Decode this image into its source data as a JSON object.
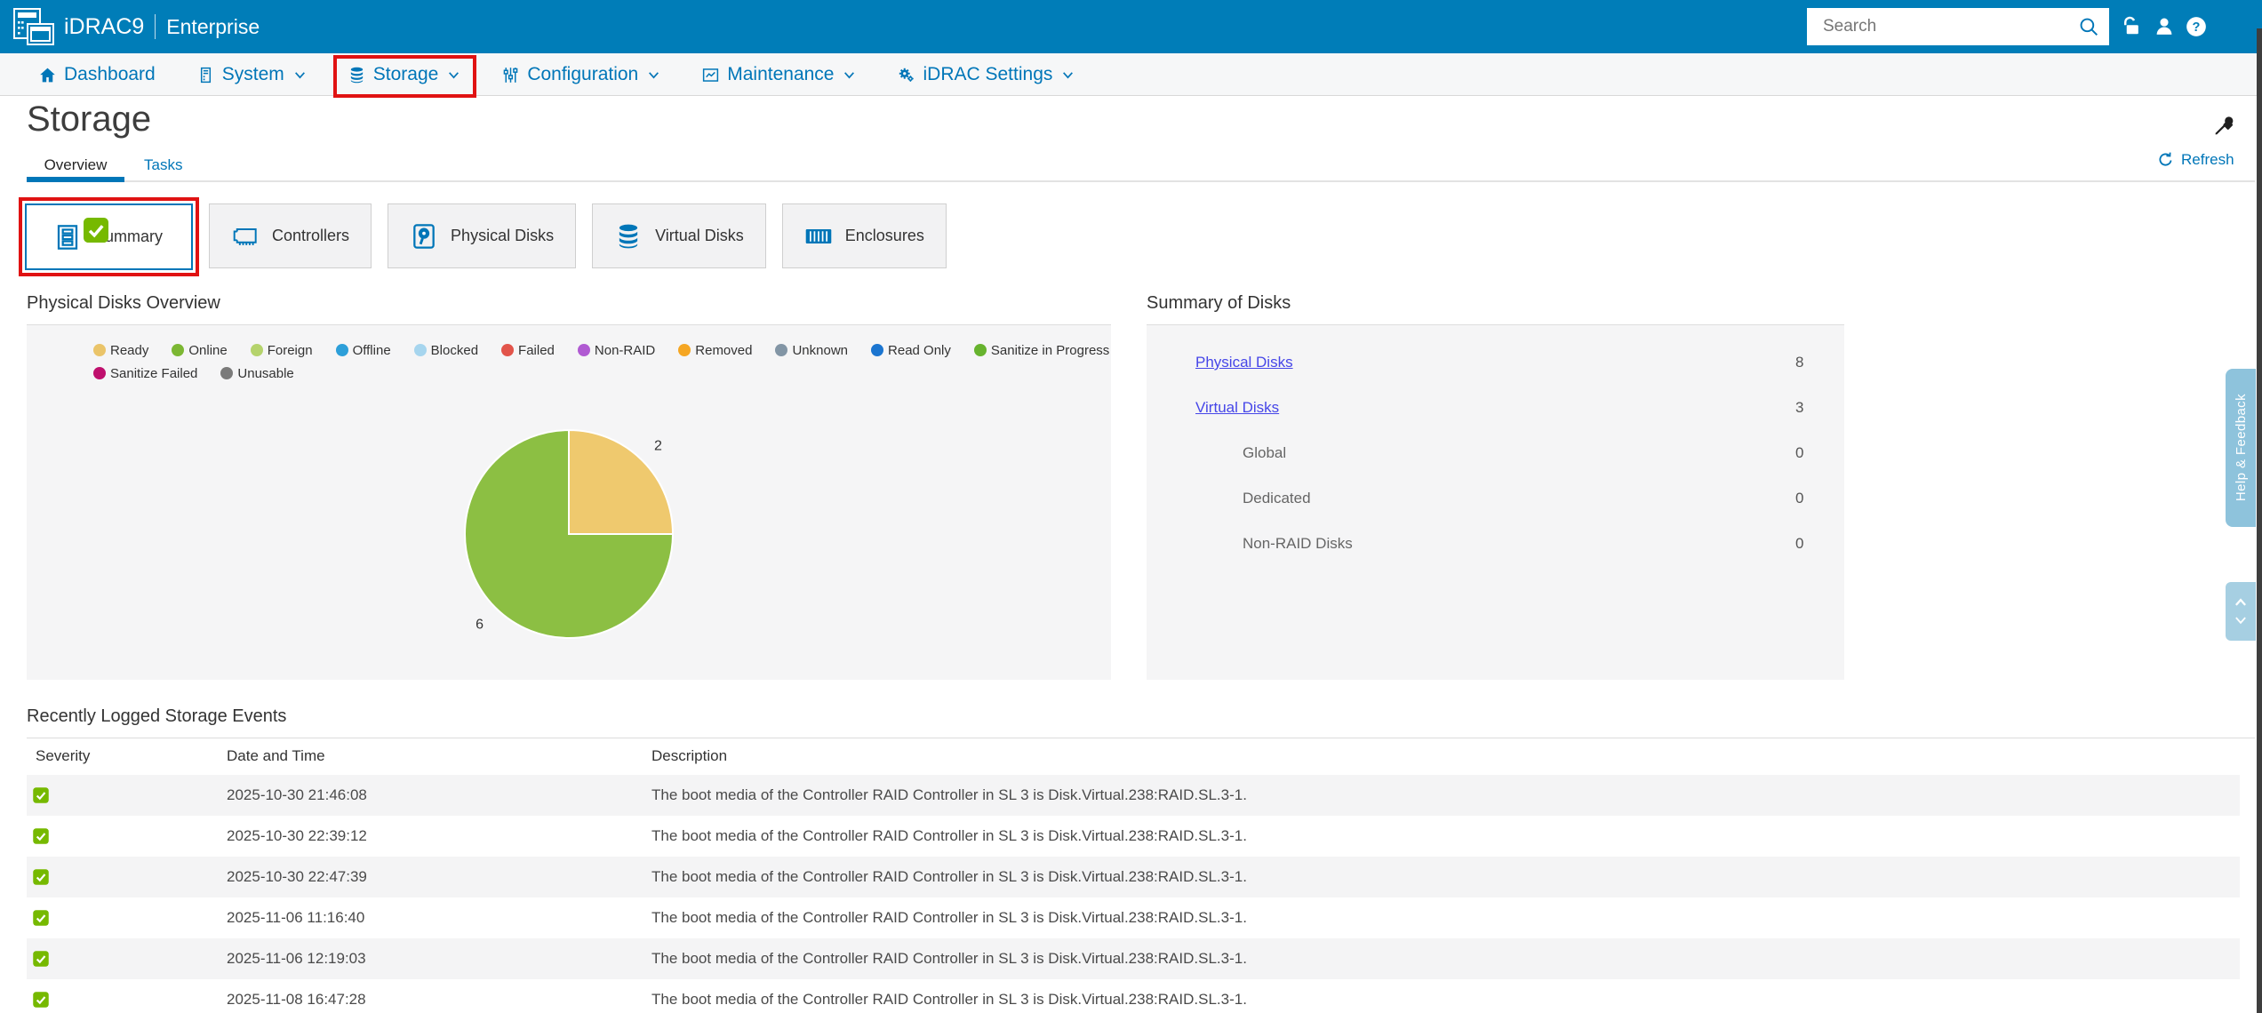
{
  "header": {
    "product": "iDRAC9",
    "edition": "Enterprise",
    "search_placeholder": "Search",
    "icons": [
      "lock-open-icon",
      "user-icon",
      "help-icon"
    ]
  },
  "nav": {
    "items": [
      {
        "label": "Dashboard",
        "icon": "home",
        "dropdown": false,
        "highlighted": false
      },
      {
        "label": "System",
        "icon": "server",
        "dropdown": true,
        "highlighted": false
      },
      {
        "label": "Storage",
        "icon": "db",
        "dropdown": true,
        "highlighted": true
      },
      {
        "label": "Configuration",
        "icon": "sliders",
        "dropdown": true,
        "highlighted": false
      },
      {
        "label": "Maintenance",
        "icon": "chart-square",
        "dropdown": true,
        "highlighted": false
      },
      {
        "label": "iDRAC Settings",
        "icon": "gears",
        "dropdown": true,
        "highlighted": false
      }
    ],
    "pin_icon": "pin"
  },
  "page": {
    "title": "Storage",
    "tabs": [
      {
        "label": "Overview",
        "active": true
      },
      {
        "label": "Tasks",
        "active": false
      }
    ],
    "refresh_label": "Refresh"
  },
  "cards": [
    {
      "label": "Summary",
      "icon": "card-summary",
      "selected": true,
      "badge": "ok"
    },
    {
      "label": "Controllers",
      "icon": "card-controllers",
      "selected": false
    },
    {
      "label": "Physical Disks",
      "icon": "card-pdisk",
      "selected": false
    },
    {
      "label": "Virtual Disks",
      "icon": "card-vdisk",
      "selected": false
    },
    {
      "label": "Enclosures",
      "icon": "card-enclosure",
      "selected": false
    }
  ],
  "chart_section": {
    "title": "Physical Disks Overview"
  },
  "chart_data": {
    "type": "pie",
    "title": "Physical Disks Overview",
    "slices": [
      {
        "label": "Ready",
        "value": 2,
        "color": "#efc96e"
      },
      {
        "label": "Online",
        "value": 6,
        "color": "#8cbf43"
      }
    ],
    "total": 8,
    "start_angle_deg": 0,
    "direction": "clockwise",
    "data_labels_shown": true,
    "legend_position": "top",
    "legend_rows": [
      11,
      2
    ],
    "legend": [
      {
        "label": "Ready",
        "color": "#eac469"
      },
      {
        "label": "Online",
        "color": "#7cb733"
      },
      {
        "label": "Foreign",
        "color": "#b5d36c"
      },
      {
        "label": "Offline",
        "color": "#2d9fd9"
      },
      {
        "label": "Blocked",
        "color": "#a6d5ee"
      },
      {
        "label": "Failed",
        "color": "#e2544a"
      },
      {
        "label": "Non-RAID",
        "color": "#b05ad2"
      },
      {
        "label": "Removed",
        "color": "#f5a623"
      },
      {
        "label": "Unknown",
        "color": "#8295a5"
      },
      {
        "label": "Read Only",
        "color": "#1b75d0"
      },
      {
        "label": "Sanitize in Progress",
        "color": "#67b32e"
      },
      {
        "label": "Sanitize Failed",
        "color": "#bf0f6d"
      },
      {
        "label": "Unusable",
        "color": "#7a7a7a"
      }
    ]
  },
  "summary": {
    "title": "Summary of Disks",
    "rows": [
      {
        "label": "Physical Disks",
        "value": "8",
        "link": true,
        "indent": false
      },
      {
        "label": "Virtual Disks",
        "value": "3",
        "link": true,
        "indent": false
      },
      {
        "label": "Global",
        "value": "0",
        "link": false,
        "indent": true
      },
      {
        "label": "Dedicated",
        "value": "0",
        "link": false,
        "indent": true
      },
      {
        "label": "Non-RAID Disks",
        "value": "0",
        "link": false,
        "indent": true
      }
    ]
  },
  "events": {
    "title": "Recently Logged Storage Events",
    "columns": [
      "Severity",
      "Date and Time",
      "Description"
    ],
    "rows": [
      {
        "severity": "ok",
        "datetime": "2025-10-30 21:46:08",
        "description": "The boot media of the Controller RAID Controller in SL 3 is Disk.Virtual.238:RAID.SL.3-1."
      },
      {
        "severity": "ok",
        "datetime": "2025-10-30 22:39:12",
        "description": "The boot media of the Controller RAID Controller in SL 3 is Disk.Virtual.238:RAID.SL.3-1."
      },
      {
        "severity": "ok",
        "datetime": "2025-10-30 22:47:39",
        "description": "The boot media of the Controller RAID Controller in SL 3 is Disk.Virtual.238:RAID.SL.3-1."
      },
      {
        "severity": "ok",
        "datetime": "2025-11-06 11:16:40",
        "description": "The boot media of the Controller RAID Controller in SL 3 is Disk.Virtual.238:RAID.SL.3-1."
      },
      {
        "severity": "ok",
        "datetime": "2025-11-06 12:19:03",
        "description": "The boot media of the Controller RAID Controller in SL 3 is Disk.Virtual.238:RAID.SL.3-1."
      },
      {
        "severity": "ok",
        "datetime": "2025-11-08 16:47:28",
        "description": "The boot media of the Controller RAID Controller in SL 3 is Disk.Virtual.238:RAID.SL.3-1."
      }
    ]
  },
  "side": {
    "help_label": "Help & Feedback"
  },
  "colors": {
    "header_blue": "#007db8",
    "link_blue": "#0076b8",
    "summary_link": "#4646e8",
    "annotation_red": "#e01212",
    "ok_green": "#76b900",
    "panel_gray": "#f5f5f6",
    "help_tab_blue": "#8ec3dc"
  }
}
